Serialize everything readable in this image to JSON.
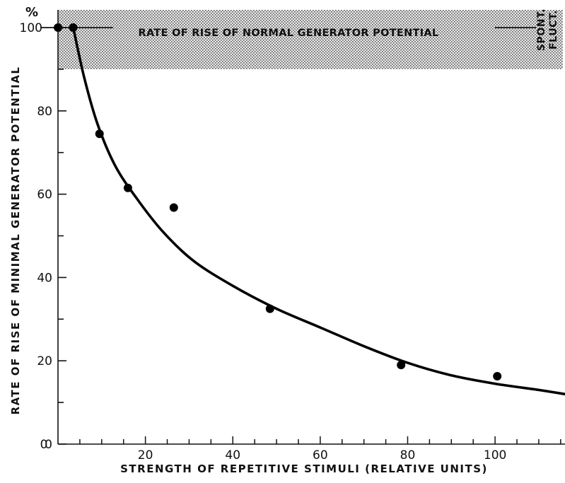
{
  "chart_data": {
    "type": "scatter",
    "xlabel": "STRENGTH OF REPETITIVE STIMULI (RELATIVE UNITS)",
    "ylabel": "RATE OF RISE OF MINIMAL GENERATOR POTENTIAL",
    "y_unit": "%",
    "xlim": [
      0,
      116
    ],
    "ylim": [
      0,
      107
    ],
    "x_ticks": [
      20,
      40,
      60,
      80,
      100
    ],
    "y_ticks": [
      0,
      20,
      40,
      60,
      80,
      100
    ],
    "grid": false,
    "reference_line": {
      "y": 100,
      "label": "RATE OF RISE OF NORMAL GENERATOR POTENTIAL"
    },
    "band": {
      "y_from": 90,
      "y_to": 107,
      "label_line1": "SPONT.",
      "label_line2": "FLUCT."
    },
    "series": [
      {
        "points": [
          {
            "x": 0,
            "y": 100
          },
          {
            "x": 3.5,
            "y": 100
          },
          {
            "x": 9.5,
            "y": 74.5
          },
          {
            "x": 16,
            "y": 61.5
          },
          {
            "x": 26.5,
            "y": 56.8
          },
          {
            "x": 48.5,
            "y": 32.5
          },
          {
            "x": 78.5,
            "y": 19
          },
          {
            "x": 100.5,
            "y": 16.3
          }
        ]
      }
    ],
    "fitted_curve": [
      {
        "x": 3.5,
        "y": 100
      },
      {
        "x": 6,
        "y": 88
      },
      {
        "x": 9,
        "y": 77
      },
      {
        "x": 13,
        "y": 67
      },
      {
        "x": 18,
        "y": 59
      },
      {
        "x": 24,
        "y": 51
      },
      {
        "x": 31,
        "y": 44
      },
      {
        "x": 40,
        "y": 38
      },
      {
        "x": 50,
        "y": 32.5
      },
      {
        "x": 60,
        "y": 28
      },
      {
        "x": 70,
        "y": 23.5
      },
      {
        "x": 80,
        "y": 19.5
      },
      {
        "x": 90,
        "y": 16.5
      },
      {
        "x": 100,
        "y": 14.5
      },
      {
        "x": 110,
        "y": 13
      },
      {
        "x": 116,
        "y": 12
      }
    ]
  }
}
